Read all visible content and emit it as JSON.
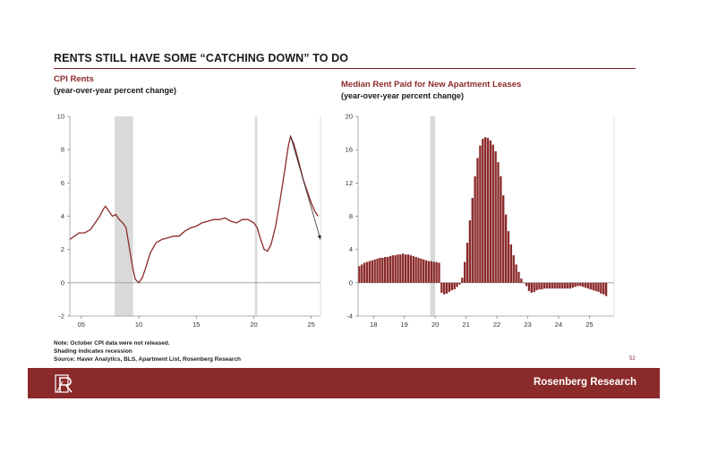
{
  "slide": {
    "title": "RENTS STILL HAVE SOME “CATCHING DOWN” TO DO",
    "note_lines": [
      "Note: October CPI data were not released.",
      "Shading indicates recession",
      "Source: Haver Analytics, BLS, Apartment List, Rosenberg Research"
    ],
    "page_number": "52",
    "footer_brand": "Rosenberg Research",
    "footer_color": "#8b2a2a"
  },
  "chart_data": [
    {
      "type": "line",
      "title": "CPI Rents",
      "subtitle": "(year-over-year percent change)",
      "color": "#8b2a2a",
      "ylim": [
        -2,
        10
      ],
      "yticks": [
        -2,
        0,
        2,
        4,
        6,
        8,
        10
      ],
      "xlim": [
        2004.0,
        2025.8
      ],
      "xticks": [
        2005,
        2010,
        2015,
        2020,
        2025
      ],
      "xtick_labels": [
        "05",
        "10",
        "15",
        "20",
        "25"
      ],
      "recessions": [
        [
          2007.9,
          2009.5
        ],
        [
          2020.1,
          2020.3
        ]
      ],
      "series": [
        {
          "x": [
            2004.0,
            2004.4,
            2004.8,
            2005.3,
            2005.8,
            2006.2,
            2006.6,
            2006.9,
            2007.1,
            2007.4,
            2007.7,
            2008.0,
            2008.3,
            2008.6,
            2008.9,
            2009.2,
            2009.5,
            2009.7,
            2010.0,
            2010.3,
            2010.6,
            2011.0,
            2011.5,
            2012.0,
            2012.5,
            2013.0,
            2013.5,
            2014.0,
            2014.5,
            2015.0,
            2015.5,
            2016.0,
            2016.5,
            2017.0,
            2017.5,
            2018.0,
            2018.5,
            2019.0,
            2019.5,
            2020.0,
            2020.3,
            2020.6,
            2020.9,
            2021.2,
            2021.5,
            2021.9,
            2022.3,
            2022.7,
            2023.0,
            2023.2,
            2023.5,
            2023.9,
            2024.3,
            2024.7,
            2025.0,
            2025.3,
            2025.6
          ],
          "y": [
            2.6,
            2.8,
            3.0,
            3.0,
            3.2,
            3.6,
            4.0,
            4.4,
            4.6,
            4.3,
            4.0,
            4.1,
            3.8,
            3.6,
            3.3,
            2.0,
            0.8,
            0.2,
            0.0,
            0.3,
            0.9,
            1.8,
            2.4,
            2.6,
            2.7,
            2.8,
            2.8,
            3.1,
            3.3,
            3.4,
            3.6,
            3.7,
            3.8,
            3.8,
            3.9,
            3.7,
            3.6,
            3.8,
            3.8,
            3.6,
            3.3,
            2.6,
            2.0,
            1.9,
            2.3,
            3.4,
            5.0,
            6.8,
            8.2,
            8.8,
            8.3,
            7.3,
            6.2,
            5.4,
            4.8,
            4.3,
            4.0
          ]
        }
      ],
      "trend_arrow": {
        "x": [
          2023.2,
          2025.8
        ],
        "y": [
          8.8,
          2.6
        ]
      }
    },
    {
      "type": "bar",
      "title": "Median Rent Paid for New Apartment Leases",
      "subtitle": "(year-over-year percent change)",
      "color": "#8b2a2a",
      "ylim": [
        -4,
        20
      ],
      "yticks": [
        -4,
        0,
        4,
        8,
        12,
        16,
        20
      ],
      "xlim": [
        2017.5,
        2025.8
      ],
      "xticks": [
        2018,
        2019,
        2020,
        2021,
        2022,
        2023,
        2024,
        2025
      ],
      "xtick_labels": [
        "18",
        "19",
        "20",
        "21",
        "22",
        "23",
        "24",
        "25"
      ],
      "recessions": [
        [
          2019.84,
          2020.0
        ]
      ],
      "x_start": 2017.5,
      "bar_step_months": 1,
      "values": [
        2.0,
        2.2,
        2.4,
        2.5,
        2.6,
        2.7,
        2.8,
        2.9,
        3.0,
        3.0,
        3.1,
        3.1,
        3.2,
        3.3,
        3.3,
        3.4,
        3.4,
        3.5,
        3.4,
        3.4,
        3.3,
        3.2,
        3.1,
        3.0,
        2.9,
        2.8,
        2.7,
        2.6,
        2.6,
        2.5,
        2.5,
        2.4,
        -1.2,
        -1.4,
        -1.3,
        -1.1,
        -0.9,
        -0.8,
        -0.5,
        -0.2,
        0.6,
        2.5,
        4.8,
        7.5,
        10.2,
        12.8,
        15.0,
        16.5,
        17.3,
        17.5,
        17.4,
        17.1,
        16.6,
        15.8,
        14.5,
        12.8,
        10.5,
        8.2,
        6.2,
        4.6,
        3.3,
        2.2,
        1.3,
        0.5,
        0.0,
        -0.4,
        -1.0,
        -1.2,
        -1.1,
        -0.9,
        -0.8,
        -0.8,
        -0.7,
        -0.7,
        -0.7,
        -0.7,
        -0.7,
        -0.7,
        -0.7,
        -0.7,
        -0.7,
        -0.7,
        -0.7,
        -0.6,
        -0.5,
        -0.4,
        -0.4,
        -0.5,
        -0.6,
        -0.7,
        -0.8,
        -0.9,
        -1.0,
        -1.1,
        -1.3,
        -1.4,
        -1.6
      ]
    }
  ]
}
